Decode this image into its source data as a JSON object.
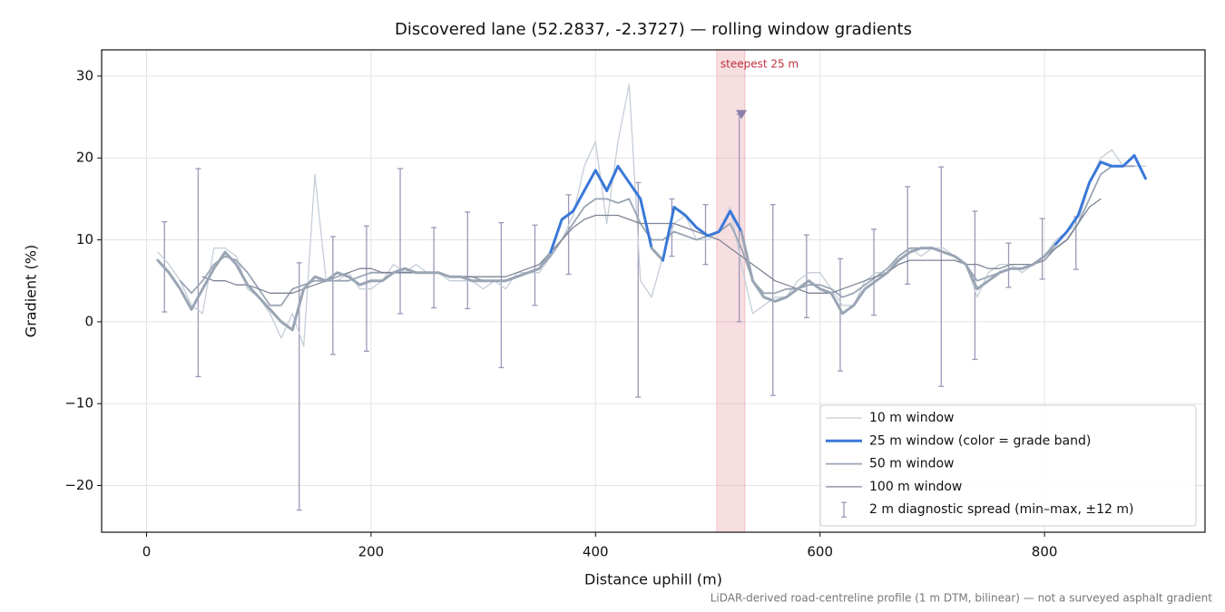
{
  "chart_data": {
    "type": "line",
    "title": "Discovered lane (52.2837, -2.3727) — rolling window gradients",
    "xlabel": "Distance uphill (m)",
    "ylabel": "Gradient (%)",
    "footnote": "LiDAR-derived road-centreline profile (1 m DTM, bilinear) — not a surveyed asphalt gradient",
    "xlim": [
      -40,
      943
    ],
    "ylim": [
      -25.7,
      33.2
    ],
    "xticks": [
      0,
      200,
      400,
      600,
      800
    ],
    "yticks": [
      {
        "value": -20,
        "label": "−20"
      },
      {
        "value": -10,
        "label": "−10"
      },
      0,
      10,
      20,
      30
    ],
    "grid": true,
    "legend": "lower right",
    "x": [
      10,
      20,
      30,
      40,
      50,
      60,
      70,
      80,
      90,
      100,
      110,
      120,
      130,
      140,
      150,
      160,
      170,
      180,
      190,
      200,
      210,
      220,
      230,
      240,
      250,
      260,
      270,
      280,
      290,
      300,
      310,
      320,
      330,
      340,
      350,
      360,
      370,
      380,
      390,
      400,
      410,
      420,
      430,
      440,
      450,
      460,
      470,
      480,
      490,
      500,
      510,
      520,
      530,
      540,
      550,
      560,
      570,
      580,
      590,
      600,
      610,
      620,
      630,
      640,
      650,
      660,
      670,
      680,
      690,
      700,
      710,
      720,
      730,
      740,
      750,
      760,
      770,
      780,
      790,
      800,
      810,
      820,
      830,
      840,
      850,
      860,
      870,
      880,
      890
    ],
    "series": [
      {
        "name": "10 m window",
        "color": "#c5ced8",
        "values": [
          8.5,
          7,
          5,
          2,
          1,
          9,
          9,
          8,
          4,
          3,
          1,
          -2,
          1,
          -3,
          18,
          5,
          5,
          6,
          4,
          4,
          5,
          7,
          6,
          7,
          6,
          6,
          5,
          5,
          5,
          4,
          5,
          4,
          6,
          6,
          6,
          8,
          10,
          13,
          19,
          22,
          12,
          22,
          29,
          5,
          3,
          8,
          12,
          13,
          10,
          10,
          11,
          14,
          7,
          1,
          2,
          3,
          3,
          5,
          6,
          6,
          4,
          2,
          2,
          5,
          6,
          6,
          8,
          9,
          8,
          9,
          9,
          8,
          7,
          3,
          6,
          7,
          7,
          6,
          7,
          8,
          10,
          11,
          12,
          17,
          20,
          21,
          19,
          19,
          19
        ]
      },
      {
        "name": "25 m window (color = grade band)",
        "color": "#3a78d8",
        "bands": [
          {
            "below": 10,
            "color": "#9aa5b4"
          },
          {
            "below": 20,
            "color": "#3a78d8"
          },
          {
            "below": null,
            "color": "#e08a00"
          }
        ],
        "values": [
          7.5,
          6,
          4,
          1.5,
          4,
          6.5,
          8.5,
          7,
          4.5,
          3,
          1.5,
          0,
          -1,
          4,
          5.5,
          5,
          6,
          5.5,
          4.5,
          5,
          5,
          6,
          6.5,
          6,
          6,
          6,
          5.5,
          5.5,
          5,
          5,
          5,
          5,
          5.5,
          6,
          6.5,
          8.5,
          12.5,
          13.5,
          16,
          18.5,
          16,
          19,
          17,
          15,
          9,
          7.5,
          14,
          13,
          11.5,
          10.5,
          11,
          13.5,
          11,
          5,
          3,
          2.5,
          3,
          4,
          5,
          4,
          3.5,
          1,
          2,
          4,
          5,
          6,
          7.5,
          8.5,
          9,
          9,
          8.5,
          8,
          7,
          4,
          5,
          6,
          6.5,
          6.5,
          7,
          8,
          9.5,
          11,
          13,
          17,
          19.5,
          19,
          19,
          20.3,
          17.5
        ]
      },
      {
        "name": "50 m window",
        "color": "#9aa5b4",
        "values": [
          null,
          null,
          5,
          3.5,
          5,
          7,
          8,
          7.5,
          6,
          4,
          2,
          2,
          4,
          4.5,
          5,
          5,
          5,
          5,
          5.5,
          6,
          6,
          6,
          6,
          6,
          6,
          6,
          5.5,
          5.5,
          5.5,
          5,
          5,
          5,
          5.5,
          6,
          6.5,
          8,
          10,
          12,
          14,
          15,
          15,
          14.5,
          15,
          12,
          10,
          10,
          11,
          10.5,
          10,
          10.5,
          11,
          12,
          9,
          5,
          3.5,
          3.5,
          4,
          4,
          4.5,
          4.5,
          4,
          3,
          3.5,
          4.5,
          5.5,
          6.5,
          8,
          9,
          9,
          9,
          8.5,
          8,
          7,
          5,
          5.5,
          6,
          6.5,
          6.5,
          7,
          8,
          9,
          10,
          12,
          15,
          18,
          19,
          19,
          19,
          null
        ]
      },
      {
        "name": "100 m window",
        "color": "#7c8494",
        "values": [
          null,
          null,
          null,
          null,
          5.5,
          5,
          5,
          4.5,
          4.5,
          4,
          3.5,
          3.5,
          3.5,
          4,
          4.5,
          5,
          5.5,
          6,
          6.5,
          6.5,
          6,
          6,
          6,
          6,
          6,
          6,
          5.5,
          5.5,
          5.5,
          5.5,
          5.5,
          5.5,
          6,
          6.5,
          7,
          8.5,
          10,
          11.5,
          12.5,
          13,
          13,
          13,
          12.5,
          12,
          12,
          12,
          12,
          11.5,
          11,
          10.5,
          10,
          9,
          8,
          7,
          6,
          5,
          4.5,
          4,
          3.5,
          3.5,
          3.5,
          4,
          4.5,
          5,
          5.5,
          6,
          7,
          7.5,
          7.5,
          7.5,
          7.5,
          7.5,
          7,
          7,
          6.5,
          6.5,
          7,
          7,
          7,
          7.5,
          9,
          10,
          12,
          14,
          15,
          null,
          null,
          null,
          null
        ]
      }
    ],
    "errorbars": {
      "name": "2 m diagnostic spread (min–max, ±12 m)",
      "color": "#9d98b8",
      "x": [
        16,
        46,
        136,
        166,
        196,
        226,
        256,
        286,
        316,
        346,
        376,
        438,
        468,
        498,
        528,
        558,
        588,
        618,
        648,
        678,
        708,
        738,
        768,
        798,
        828
      ],
      "low": [
        1.2,
        -6.7,
        -23,
        -4,
        -3.6,
        1,
        1.7,
        1.6,
        -5.6,
        2,
        5.8,
        -9.2,
        8,
        7,
        0,
        -9,
        0.5,
        -6,
        0.8,
        4.6,
        -7.9,
        -4.6,
        4.2,
        5.2,
        6.4
      ],
      "high": [
        12.2,
        18.7,
        7.2,
        10.4,
        11.7,
        18.7,
        11.5,
        13.4,
        12.1,
        11.8,
        15.5,
        17,
        15,
        14.3,
        25.3,
        14.3,
        10.6,
        7.7,
        11.3,
        16.5,
        18.9,
        13.5,
        9.6,
        12.6,
        12.8
      ]
    },
    "highlight": {
      "label": "steepest 25 m",
      "x": [
        508,
        533
      ],
      "color": "#e8a0a8",
      "text_color": "#c0303c"
    },
    "marker": {
      "x": 530,
      "y": 25.3,
      "color": "#8a7fa8"
    }
  }
}
